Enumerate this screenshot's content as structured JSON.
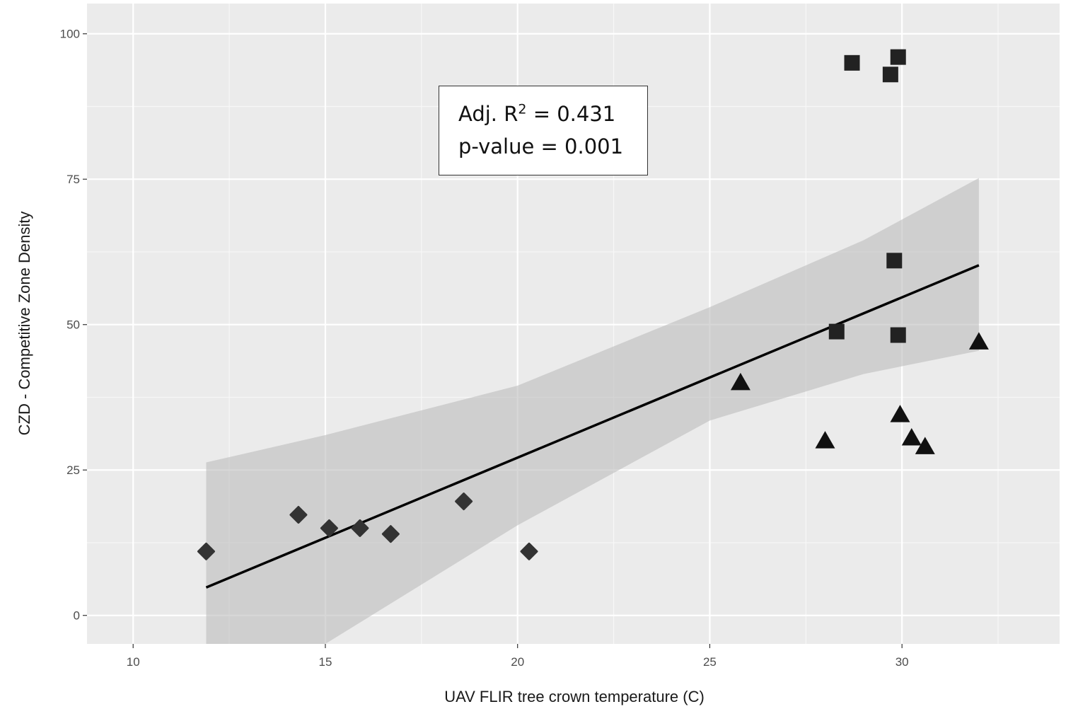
{
  "chart_data": {
    "type": "scatter",
    "title": "",
    "xlabel": "UAV FLIR tree crown temperature (C)",
    "ylabel": "CZD - Competitive Zone Density",
    "xlim": [
      8.8,
      34.1
    ],
    "ylim": [
      -4.9,
      105.2
    ],
    "x_ticks": [
      10,
      15,
      20,
      25,
      30
    ],
    "y_ticks": [
      0,
      25,
      50,
      75,
      100
    ],
    "grid": true,
    "legend": null,
    "series": [
      {
        "name": "diamond",
        "marker": "diamond",
        "color": "#333333",
        "points": [
          {
            "x": 11.9,
            "y": 11.0
          },
          {
            "x": 14.3,
            "y": 17.3
          },
          {
            "x": 15.1,
            "y": 15.0
          },
          {
            "x": 15.9,
            "y": 15.0
          },
          {
            "x": 16.7,
            "y": 14.0
          },
          {
            "x": 18.6,
            "y": 19.6
          },
          {
            "x": 20.3,
            "y": 11.0
          }
        ]
      },
      {
        "name": "square",
        "marker": "square",
        "color": "#222222",
        "points": [
          {
            "x": 28.7,
            "y": 95.0
          },
          {
            "x": 29.7,
            "y": 93.0
          },
          {
            "x": 29.9,
            "y": 96.0
          },
          {
            "x": 29.8,
            "y": 61.0
          },
          {
            "x": 28.3,
            "y": 48.8
          },
          {
            "x": 29.9,
            "y": 48.2
          }
        ]
      },
      {
        "name": "triangle",
        "marker": "triangle",
        "color": "#111111",
        "points": [
          {
            "x": 25.8,
            "y": 40.0
          },
          {
            "x": 28.0,
            "y": 30.0
          },
          {
            "x": 29.95,
            "y": 34.5
          },
          {
            "x": 30.25,
            "y": 30.5
          },
          {
            "x": 30.6,
            "y": 29.0
          },
          {
            "x": 32.0,
            "y": 47.0
          }
        ]
      }
    ],
    "fit_line": {
      "x": [
        11.9,
        32.0
      ],
      "y": [
        4.8,
        60.2
      ],
      "confidence_band": {
        "x": [
          11.9,
          15.0,
          20.0,
          25.0,
          29.0,
          32.0
        ],
        "upper": [
          26.3,
          31.0,
          39.5,
          53.0,
          64.5,
          75.2
        ],
        "lower": [
          -16.7,
          -5.5,
          15.5,
          33.5,
          41.5,
          45.5
        ]
      }
    },
    "annotation": {
      "r2_label": "Adj. R",
      "r2_sup": "2",
      "r2_value": " = 0.431",
      "p_label": "p-value = 0.001"
    }
  },
  "axes": {
    "x_title": "UAV FLIR tree crown temperature (C)",
    "y_title": "CZD - Competitive Zone Density",
    "x_tick_labels": [
      "10",
      "15",
      "20",
      "25",
      "30"
    ],
    "y_tick_labels": [
      "0",
      "25",
      "50",
      "75",
      "100"
    ]
  },
  "colors": {
    "panel_bg": "#ebebeb",
    "grid_major": "#ffffff",
    "band": "#cccccc",
    "line": "#000000",
    "tick_text": "#4d4d4d"
  }
}
